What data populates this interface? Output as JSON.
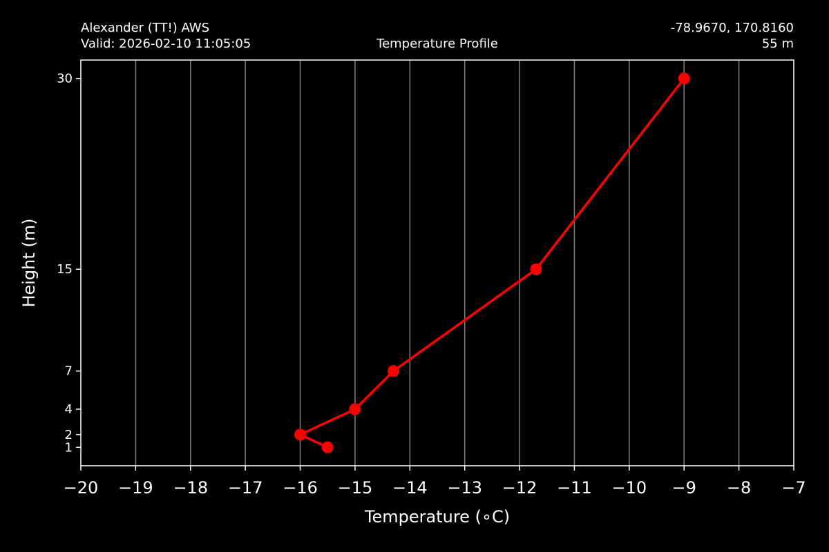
{
  "header": {
    "station": "Alexander (TT!) AWS",
    "valid": "Valid: 2026-02-10 11:05:05",
    "title": "Temperature Profile",
    "coords": "-78.9670, 170.8160",
    "elevation": "55 m"
  },
  "chart_data": {
    "type": "line",
    "title": "Temperature Profile",
    "xlabel": "Temperature (∘C)",
    "ylabel": "Height (m)",
    "xlim": [
      -20,
      -7
    ],
    "ylim": [
      -0.45,
      31.45
    ],
    "xticks": [
      -20,
      -19,
      -18,
      -17,
      -16,
      -15,
      -14,
      -13,
      -12,
      -11,
      -10,
      -9,
      -8,
      -7
    ],
    "xtick_labels": [
      "−20",
      "−19",
      "−18",
      "−17",
      "−16",
      "−15",
      "−14",
      "−13",
      "−12",
      "−11",
      "−10",
      "−9",
      "−8",
      "−7"
    ],
    "yticks": [
      1,
      2,
      4,
      7,
      15,
      30
    ],
    "ytick_labels": [
      "1",
      "2",
      "4",
      "7",
      "15",
      "30"
    ],
    "grid": "vertical",
    "series": [
      {
        "points": [
          {
            "x": -15.5,
            "y": 1
          },
          {
            "x": -16.0,
            "y": 2
          },
          {
            "x": -15.0,
            "y": 4
          },
          {
            "x": -14.3,
            "y": 7
          },
          {
            "x": -11.7,
            "y": 15
          },
          {
            "x": -9.0,
            "y": 30
          }
        ],
        "color": "#ff0000",
        "marker": "circle"
      }
    ],
    "colors": {
      "background": "#000000",
      "grid": "#808080",
      "axes": "#ffffff"
    }
  }
}
